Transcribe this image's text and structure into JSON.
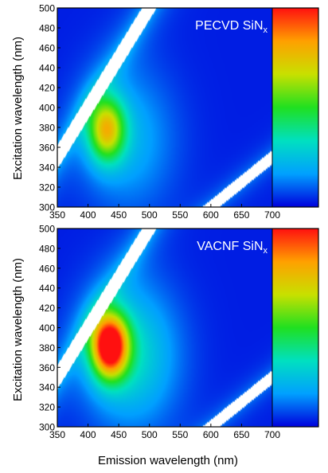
{
  "figure": {
    "shared_ylabel": "Excitation wavelength (nm)",
    "shared_xlabel": "Emission wavelength (nm)"
  },
  "chart_data": [
    {
      "type": "heatmap",
      "panel": "top",
      "label_main": "PECVD SiN",
      "label_sub": "x",
      "xlim": [
        350,
        700
      ],
      "ylim": [
        300,
        500
      ],
      "x_ticks": [
        350,
        400,
        450,
        500,
        550,
        600,
        650,
        700
      ],
      "y_ticks": [
        300,
        320,
        340,
        360,
        380,
        400,
        420,
        440,
        460,
        480,
        500
      ],
      "colormap": [
        "#0000dd",
        "#00a0ff",
        "#00e0c0",
        "#20e020",
        "#c8e000",
        "#ffa000",
        "#ff1010"
      ],
      "peaks": [
        {
          "emission_nm": 430,
          "excitation_nm": 378,
          "relative_intensity": 0.62
        }
      ],
      "scatter_bands": [
        {
          "name": "first-order Rayleigh scatter",
          "emission_eq_excitation": true,
          "width_nm": 12
        },
        {
          "name": "second-order Rayleigh scatter",
          "emission_eq_2x_excitation": true,
          "width_nm": 14
        }
      ]
    },
    {
      "type": "heatmap",
      "panel": "bottom",
      "label_main": "VACNF SiN",
      "label_sub": "x",
      "xlim": [
        350,
        700
      ],
      "ylim": [
        300,
        500
      ],
      "x_ticks": [
        350,
        400,
        450,
        500,
        550,
        600,
        650,
        700
      ],
      "y_ticks": [
        300,
        320,
        340,
        360,
        380,
        400,
        420,
        440,
        460,
        480,
        500
      ],
      "colormap": [
        "#0000dd",
        "#00a0ff",
        "#00e0c0",
        "#20e020",
        "#c8e000",
        "#ffa000",
        "#ff1010"
      ],
      "peaks": [
        {
          "emission_nm": 435,
          "excitation_nm": 382,
          "relative_intensity": 1.0
        }
      ],
      "scatter_bands": [
        {
          "name": "first-order Rayleigh scatter",
          "emission_eq_excitation": true,
          "width_nm": 12
        },
        {
          "name": "second-order Rayleigh scatter",
          "emission_eq_2x_excitation": true,
          "width_nm": 14
        }
      ]
    }
  ]
}
